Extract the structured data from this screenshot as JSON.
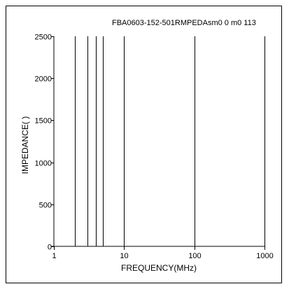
{
  "chart_data": {
    "type": "line",
    "title": "FBA0603-152-501RMPEDAsm0 0 m0 113",
    "xlabel": "FREQUENCY(MHz)",
    "ylabel": "IMPEDANCE(  )",
    "x_scale": "log",
    "xlim": [
      1,
      1000
    ],
    "ylim": [
      0,
      2500
    ],
    "x_ticks": [
      1,
      10,
      100,
      1000
    ],
    "x_tick_labels": [
      "1",
      "10",
      "100",
      "1000"
    ],
    "y_ticks": [
      0,
      500,
      1000,
      1500,
      2000,
      2500
    ],
    "y_tick_labels": [
      "0",
      "500",
      "1000",
      "1500",
      "2000",
      "2500"
    ],
    "grid": false,
    "legend": "none",
    "vertical_lines_x": [
      2,
      3,
      4,
      5,
      10,
      100,
      1000
    ],
    "colors": {
      "line": "#000000",
      "background": "#ffffff"
    }
  }
}
